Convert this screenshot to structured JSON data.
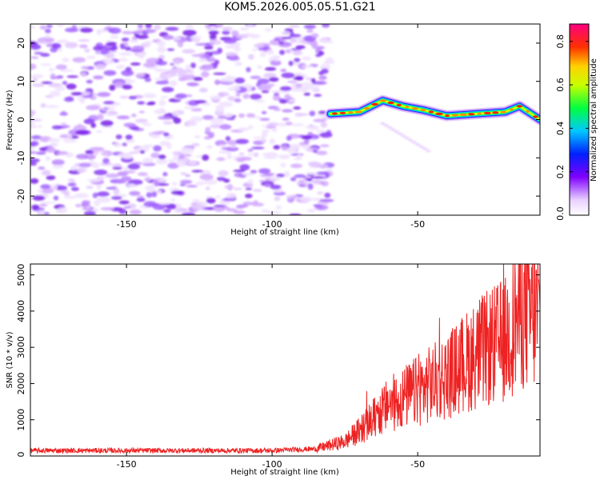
{
  "title": "KOM5.2026.005.05.51.G21",
  "chart_data": [
    {
      "type": "heatmap",
      "title": "KOM5.2026.005.05.51.G21",
      "xlabel": "Height of straight line (km)",
      "ylabel": "Frequency (Hz)",
      "xlim": [
        -183,
        -8
      ],
      "ylim": [
        -25,
        25
      ],
      "xticks": [
        -150,
        -100,
        -50
      ],
      "yticks": [
        -20,
        -10,
        0,
        10,
        20
      ],
      "noise_region_x": [
        -183,
        -80
      ],
      "signal_track": {
        "x": [
          -80,
          -70,
          -62,
          -55,
          -48,
          -40,
          -30,
          -20,
          -15,
          -10,
          -8
        ],
        "y": [
          1.5,
          2.0,
          5.0,
          3.5,
          2.5,
          1.0,
          1.5,
          2.0,
          3.5,
          1.0,
          0.0
        ]
      },
      "colorbar": {
        "label": "Normalized spectral amplitude",
        "range": [
          0.0,
          0.88
        ],
        "ticks": [
          0.0,
          0.2,
          0.4,
          0.6,
          0.8
        ],
        "tick_labels": [
          "0.0",
          "0.2",
          "0.4",
          "0.6",
          "0.8"
        ],
        "colormap": "rainbow"
      }
    },
    {
      "type": "line",
      "xlabel": "Height of straight line (km)",
      "ylabel": "SNR (10 * v/v)",
      "xlim": [
        -183,
        -8
      ],
      "ylim": [
        0,
        5300
      ],
      "xticks": [
        -150,
        -100,
        -50
      ],
      "yticks": [
        0,
        1000,
        2000,
        3000,
        4000,
        5000
      ],
      "series": [
        {
          "name": "SNR",
          "color": "#ee2222",
          "trend_x": [
            -183,
            -100,
            -85,
            -75,
            -70,
            -60,
            -50,
            -40,
            -30,
            -20,
            -15,
            -8
          ],
          "trend_y": [
            150,
            150,
            200,
            400,
            700,
            1400,
            1800,
            2200,
            2800,
            3200,
            4000,
            3800
          ]
        }
      ]
    }
  ]
}
